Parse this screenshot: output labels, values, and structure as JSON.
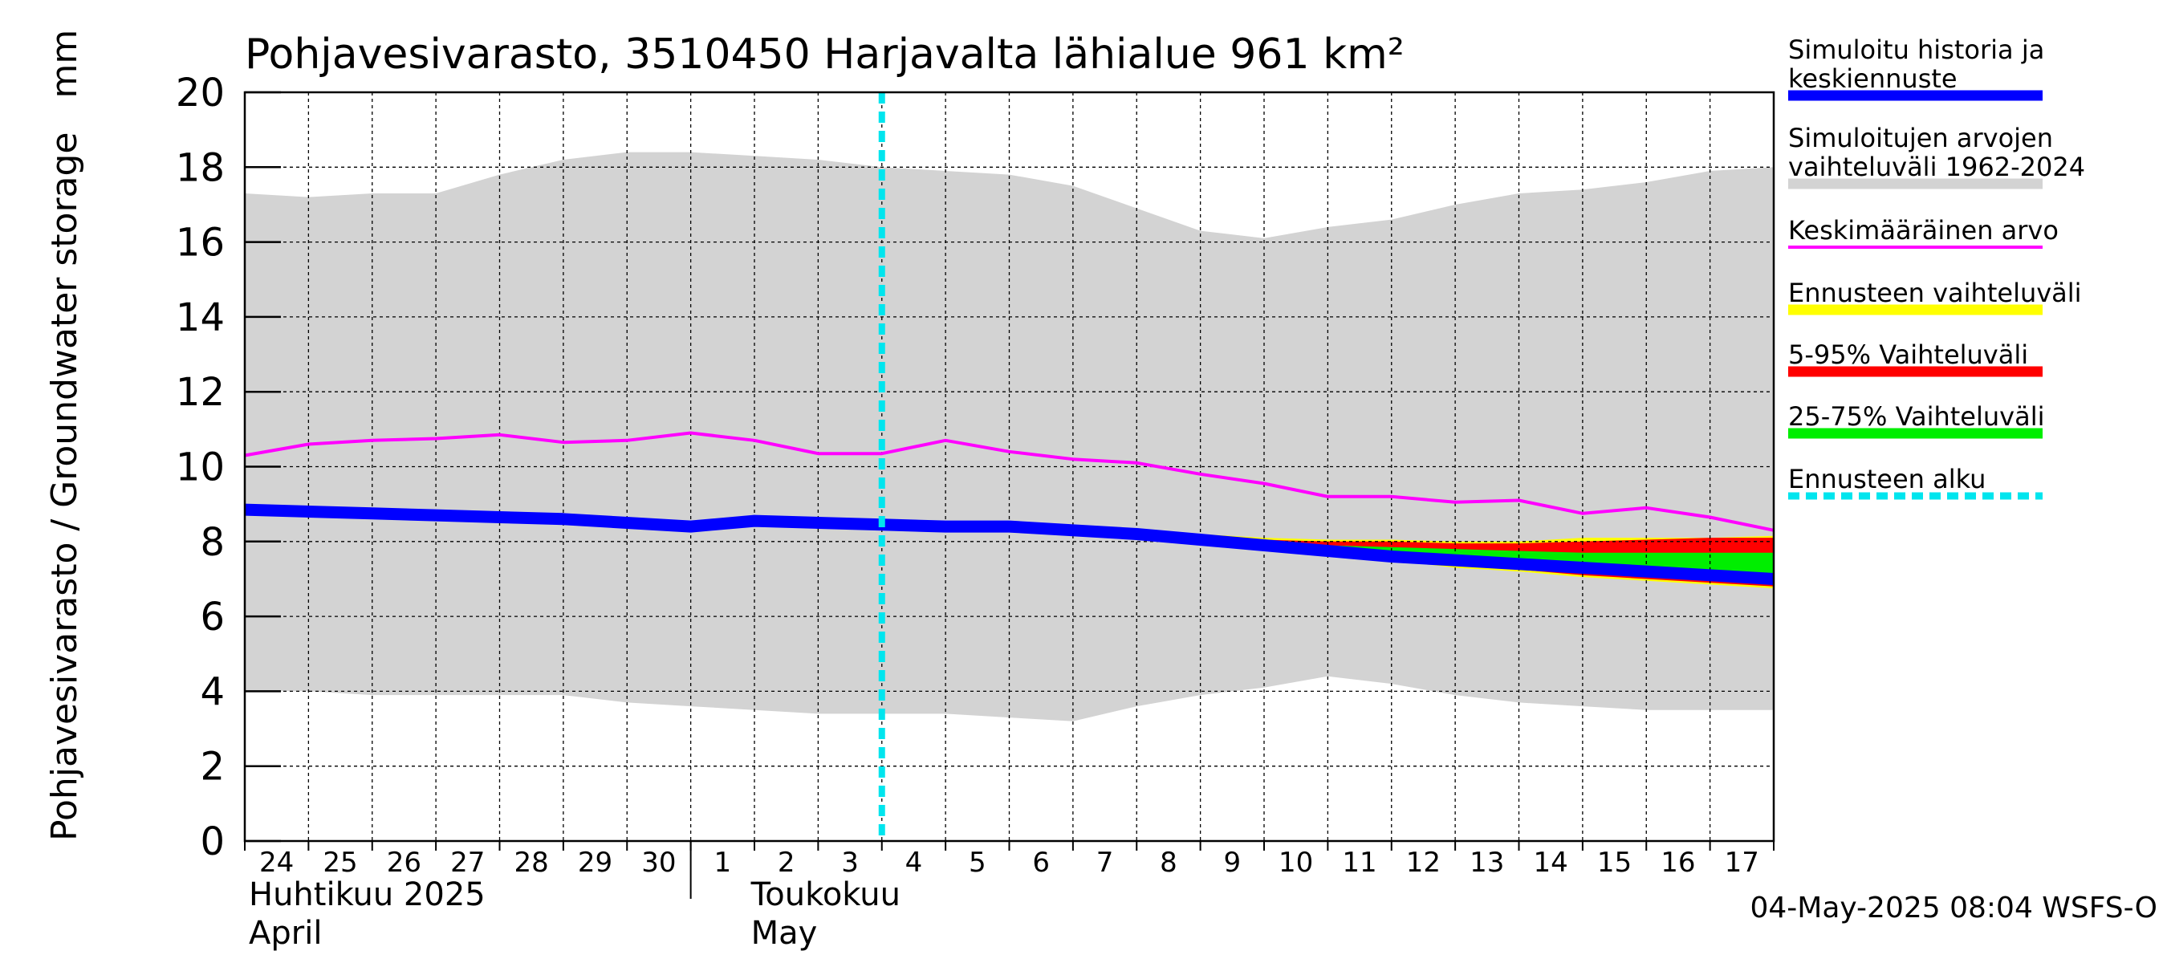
{
  "chart_data": {
    "type": "area",
    "title": "Pohjavesivarasto, 3510450 Harjavalta lähialue 961 km²",
    "ylabel": "Pohjavesivarasto / Groundwater storage   mm",
    "ylim": [
      0,
      20
    ],
    "yticks": [
      "0",
      "2",
      "4",
      "6",
      "8",
      "10",
      "12",
      "14",
      "16",
      "18",
      "20"
    ],
    "xlim": [
      0,
      24
    ],
    "day_labels": [
      "24",
      "25",
      "26",
      "27",
      "28",
      "29",
      "30",
      "1",
      "2",
      "3",
      "4",
      "5",
      "6",
      "7",
      "8",
      "9",
      "10",
      "11",
      "12",
      "13",
      "14",
      "15",
      "16",
      "17"
    ],
    "month_labels": [
      {
        "fi": "Huhtikuu  2025",
        "en": "April"
      },
      {
        "fi": "Toukokuu",
        "en": "May"
      }
    ],
    "grid": true,
    "legend_position": "right",
    "forecast_start_x": 10,
    "series": [
      {
        "name": "Simuloitujen arvojen vaihteluväli 1962-2024",
        "kind": "band",
        "color": "#d3d3d3",
        "x": [
          0,
          1,
          2,
          3,
          4,
          5,
          6,
          7,
          8,
          9,
          10,
          11,
          12,
          13,
          14,
          15,
          16,
          17,
          18,
          19,
          20,
          21,
          22,
          23,
          24
        ],
        "upper": [
          17.3,
          17.2,
          17.3,
          17.3,
          17.8,
          18.2,
          18.4,
          18.4,
          18.3,
          18.2,
          18.0,
          17.9,
          17.8,
          17.5,
          16.9,
          16.3,
          16.1,
          16.4,
          16.6,
          17.0,
          17.3,
          17.4,
          17.6,
          17.9,
          18.0
        ],
        "lower": [
          4.0,
          4.0,
          3.9,
          3.9,
          3.9,
          3.9,
          3.7,
          3.6,
          3.5,
          3.4,
          3.4,
          3.4,
          3.3,
          3.2,
          3.6,
          3.9,
          4.1,
          4.4,
          4.2,
          3.9,
          3.7,
          3.6,
          3.5,
          3.5,
          3.5
        ]
      },
      {
        "name": "Ennusteen vaihteluväli",
        "kind": "band",
        "color": "#ffff00",
        "x": [
          10,
          11,
          12,
          13,
          14,
          15,
          16,
          17,
          18,
          19,
          20,
          21,
          22,
          23,
          24
        ],
        "upper": [
          8.45,
          8.45,
          8.45,
          8.35,
          8.3,
          8.2,
          8.1,
          8.05,
          8.05,
          8.0,
          8.0,
          8.1,
          8.1,
          8.1,
          8.15
        ],
        "lower": [
          8.45,
          8.45,
          8.45,
          8.3,
          8.1,
          7.95,
          7.8,
          7.65,
          7.5,
          7.3,
          7.2,
          7.05,
          6.95,
          6.85,
          6.75
        ]
      },
      {
        "name": "5-95% Vaihteluväli",
        "kind": "band",
        "color": "#ff0000",
        "x": [
          10,
          11,
          12,
          13,
          14,
          15,
          16,
          17,
          18,
          19,
          20,
          21,
          22,
          23,
          24
        ],
        "upper": [
          8.45,
          8.45,
          8.45,
          8.35,
          8.25,
          8.15,
          8.05,
          8.0,
          8.0,
          7.95,
          7.95,
          8.0,
          8.05,
          8.1,
          8.1
        ],
        "lower": [
          8.45,
          8.45,
          8.45,
          8.3,
          8.1,
          7.95,
          7.8,
          7.65,
          7.5,
          7.35,
          7.25,
          7.1,
          7.0,
          6.9,
          6.8
        ]
      },
      {
        "name": "25-75% Vaihteluväli",
        "kind": "band",
        "color": "#00ee00",
        "x": [
          10,
          11,
          12,
          13,
          14,
          15,
          16,
          17,
          18,
          19,
          20,
          21,
          22,
          23,
          24
        ],
        "upper": [
          8.45,
          8.45,
          8.45,
          8.35,
          8.25,
          8.1,
          8.0,
          7.9,
          7.85,
          7.8,
          7.75,
          7.7,
          7.7,
          7.7,
          7.7
        ],
        "lower": [
          8.45,
          8.45,
          8.45,
          8.3,
          8.15,
          8.0,
          7.85,
          7.7,
          7.55,
          7.4,
          7.3,
          7.2,
          7.1,
          7.0,
          6.95
        ]
      },
      {
        "name": "Keskimääräinen arvo",
        "kind": "line",
        "color": "#ff00ff",
        "x": [
          0,
          1,
          2,
          3,
          4,
          5,
          6,
          7,
          8,
          9,
          10,
          11,
          12,
          13,
          14,
          15,
          16,
          17,
          18,
          19,
          20,
          21,
          22,
          23,
          24
        ],
        "y": [
          10.3,
          10.6,
          10.7,
          10.75,
          10.85,
          10.65,
          10.7,
          10.9,
          10.7,
          10.35,
          10.35,
          10.7,
          10.4,
          10.2,
          10.1,
          9.8,
          9.55,
          9.2,
          9.2,
          9.05,
          9.1,
          8.75,
          8.9,
          8.65,
          8.3
        ]
      },
      {
        "name": "Simuloitu historia ja keskiennuste",
        "kind": "line",
        "color": "#0000ff",
        "x": [
          0,
          1,
          2,
          3,
          4,
          5,
          6,
          7,
          8,
          9,
          10,
          11,
          12,
          13,
          14,
          15,
          16,
          17,
          18,
          19,
          20,
          21,
          22,
          23,
          24
        ],
        "y": [
          8.85,
          8.8,
          8.75,
          8.7,
          8.65,
          8.6,
          8.5,
          8.4,
          8.55,
          8.5,
          8.45,
          8.4,
          8.4,
          8.3,
          8.2,
          8.05,
          7.9,
          7.75,
          7.6,
          7.5,
          7.4,
          7.3,
          7.2,
          7.1,
          7.0
        ]
      }
    ]
  },
  "legend": [
    {
      "label": "Simuloitu historia ja keskiennuste",
      "color": "#0000ff",
      "style": "solid"
    },
    {
      "label": "Simuloitujen arvojen vaihteluväli 1962-2024",
      "color": "#d3d3d3",
      "style": "solid"
    },
    {
      "label": "Keskimääräinen arvo",
      "color": "#ff00ff",
      "style": "thin"
    },
    {
      "label": "Ennusteen vaihteluväli",
      "color": "#ffff00",
      "style": "solid"
    },
    {
      "label": "5-95% Vaihteluväli",
      "color": "#ff0000",
      "style": "solid"
    },
    {
      "label": "25-75% Vaihteluväli",
      "color": "#00ee00",
      "style": "solid"
    },
    {
      "label": "Ennusteen alku",
      "color": "#00e5ee",
      "style": "dashed"
    }
  ],
  "footer": "04-May-2025 08:04 WSFS-O"
}
